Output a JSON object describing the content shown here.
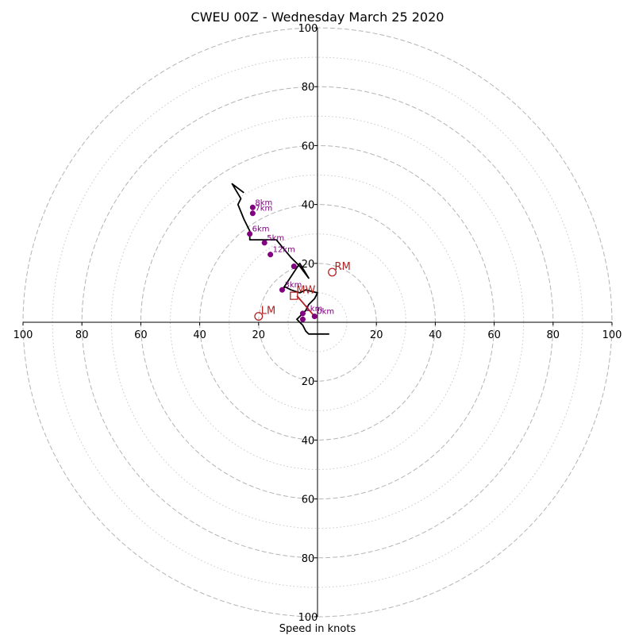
{
  "chart_data": {
    "type": "scatter",
    "title": "CWEU 00Z - Wednesday March 25 2020",
    "xlabel": "Speed in knots",
    "ylabel": "",
    "xlim": [
      -100,
      100
    ],
    "ylim": [
      -100,
      100
    ],
    "ring_values": [
      20,
      40,
      60,
      80,
      100
    ],
    "minor_ring_values": [
      10,
      30,
      50,
      70,
      90
    ],
    "x_tick_labels": [
      "100",
      "80",
      "60",
      "40",
      "20",
      "",
      "20",
      "40",
      "60",
      "80",
      "100"
    ],
    "x_tick_values": [
      -100,
      -80,
      -60,
      -40,
      -20,
      0,
      20,
      40,
      60,
      80,
      100
    ],
    "y_tick_labels": [
      "100",
      "80",
      "60",
      "40",
      "20",
      "20",
      "40",
      "60",
      "80",
      "100"
    ],
    "y_tick_values": [
      100,
      80,
      60,
      40,
      20,
      -20,
      -40,
      -60,
      -80,
      -100
    ],
    "hodograph": {
      "color": "#000000",
      "u": [
        4,
        -3,
        -4,
        -5,
        -7,
        -4,
        -3,
        -1,
        0,
        -4,
        -6,
        -9,
        -11,
        -12,
        -10,
        -8,
        -6,
        -3,
        -6,
        -9,
        -14,
        -23,
        -23,
        -25,
        -27,
        -26,
        -29,
        -25
      ],
      "v": [
        -4,
        -4,
        -3,
        -1,
        1,
        4,
        6,
        8,
        10,
        11,
        10,
        11,
        12,
        11,
        14,
        17,
        20,
        15,
        19,
        22,
        28,
        28,
        31,
        35,
        40,
        42,
        47,
        44
      ]
    },
    "height_markers": {
      "color": "#800080",
      "points": [
        {
          "label": "0km",
          "u": -1,
          "v": 2
        },
        {
          "label": "1km",
          "u": -5,
          "v": 3
        },
        {
          "label": "",
          "u": -5,
          "v": 1
        },
        {
          "label": "3km",
          "u": -12,
          "v": 11
        },
        {
          "label": "",
          "u": -8,
          "v": 19
        },
        {
          "label": "12km",
          "u": -16,
          "v": 23
        },
        {
          "label": "5km",
          "u": -18,
          "v": 27
        },
        {
          "label": "6km",
          "u": -23,
          "v": 30
        },
        {
          "label": "7km",
          "u": -22,
          "v": 37
        },
        {
          "label": "8km",
          "u": -22,
          "v": 39
        }
      ]
    },
    "storm_motion": {
      "color": "#b22222",
      "points": [
        {
          "label": "RM",
          "u": 5,
          "v": 17
        },
        {
          "label": "LM",
          "u": -20,
          "v": 2
        },
        {
          "label": "MW",
          "u": -8,
          "v": 9
        }
      ],
      "shear_vector": {
        "from": [
          -1,
          2
        ],
        "to": [
          -7,
          9
        ]
      }
    },
    "grid": true
  }
}
